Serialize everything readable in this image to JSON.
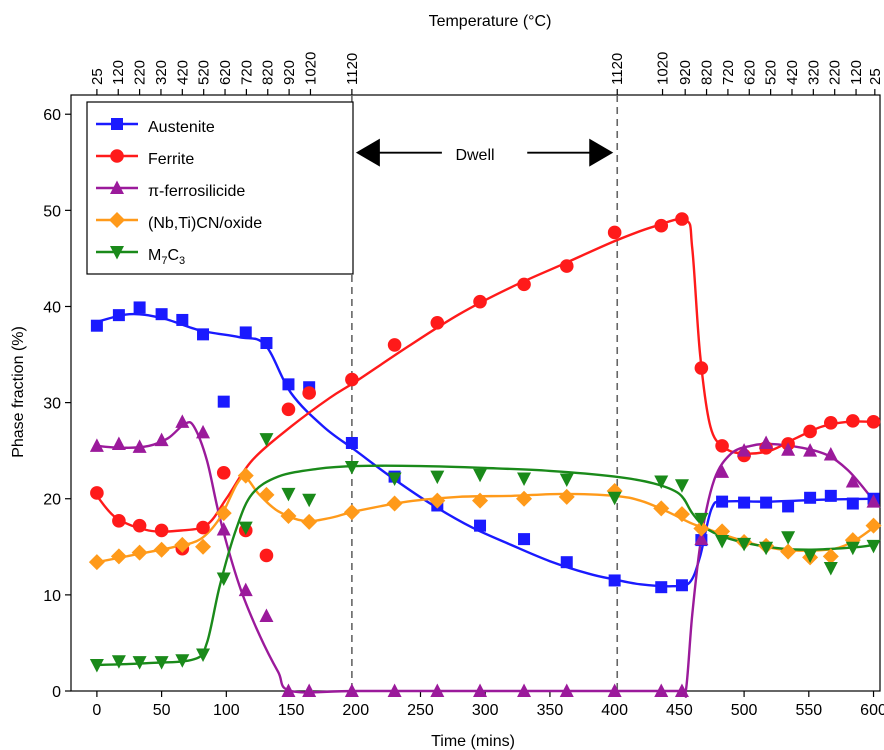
{
  "chart_data": {
    "type": "scatter",
    "xlabel": "Time (mins)",
    "ylabel": "Phase fraction (%)",
    "top_axis_label": "Temperature (°C)",
    "xlim": [
      -20,
      605
    ],
    "ylim": [
      0,
      62
    ],
    "x_ticks": [
      0,
      50,
      100,
      150,
      200,
      250,
      300,
      350,
      400,
      450,
      500,
      550,
      600
    ],
    "y_ticks": [
      0,
      10,
      20,
      30,
      40,
      50,
      60
    ],
    "top_ticks": [
      {
        "x": 0,
        "label": "25"
      },
      {
        "x": 16.5,
        "label": "120"
      },
      {
        "x": 33,
        "label": "220"
      },
      {
        "x": 49.5,
        "label": "320"
      },
      {
        "x": 66,
        "label": "420"
      },
      {
        "x": 82.5,
        "label": "520"
      },
      {
        "x": 99,
        "label": "620"
      },
      {
        "x": 115.5,
        "label": "720"
      },
      {
        "x": 132,
        "label": "820"
      },
      {
        "x": 148.5,
        "label": "920"
      },
      {
        "x": 165,
        "label": "1020"
      },
      {
        "x": 197,
        "label": "1120"
      },
      {
        "x": 402,
        "label": "1120"
      },
      {
        "x": 437,
        "label": "1020"
      },
      {
        "x": 454.5,
        "label": "920"
      },
      {
        "x": 471,
        "label": "820"
      },
      {
        "x": 487.5,
        "label": "720"
      },
      {
        "x": 504,
        "label": "620"
      },
      {
        "x": 520.5,
        "label": "520"
      },
      {
        "x": 537,
        "label": "420"
      },
      {
        "x": 553.5,
        "label": "320"
      },
      {
        "x": 570,
        "label": "220"
      },
      {
        "x": 586.5,
        "label": "120"
      },
      {
        "x": 601,
        "label": "25"
      }
    ],
    "vlines": [
      197,
      402
    ],
    "dwell": {
      "label": "Dwell",
      "from": 197,
      "to": 402,
      "y": 56
    },
    "grid": false,
    "legend_position": "top-left",
    "series": [
      {
        "name": "Austenite",
        "color": "#1a1aff",
        "marker": "square",
        "points": [
          [
            0,
            38
          ],
          [
            17,
            39.1
          ],
          [
            33,
            39.9
          ],
          [
            50,
            39.2
          ],
          [
            66,
            38.6
          ],
          [
            82,
            37.1
          ],
          [
            98,
            30.1
          ],
          [
            115,
            37.3
          ],
          [
            131,
            36.2
          ],
          [
            148,
            31.9
          ],
          [
            164,
            31.6
          ],
          [
            197,
            25.8
          ],
          [
            230,
            22.3
          ],
          [
            263,
            19.3
          ],
          [
            296,
            17.2
          ],
          [
            330,
            15.8
          ],
          [
            363,
            13.4
          ],
          [
            400,
            11.5
          ],
          [
            436,
            10.8
          ],
          [
            452,
            11
          ],
          [
            467,
            15.7
          ],
          [
            483,
            19.7
          ],
          [
            500,
            19.6
          ],
          [
            517,
            19.6
          ],
          [
            534,
            19.2
          ],
          [
            551,
            20.1
          ],
          [
            567,
            20.3
          ],
          [
            584,
            19.5
          ],
          [
            600,
            20
          ]
        ],
        "curve": [
          [
            0,
            38.4
          ],
          [
            25,
            39.2
          ],
          [
            50,
            38.8
          ],
          [
            80,
            37.5
          ],
          [
            110,
            36.8
          ],
          [
            130,
            36
          ],
          [
            150,
            31
          ],
          [
            175,
            27.5
          ],
          [
            200,
            25
          ],
          [
            230,
            22
          ],
          [
            260,
            19.3
          ],
          [
            290,
            17
          ],
          [
            320,
            15.2
          ],
          [
            350,
            13.5
          ],
          [
            380,
            12.2
          ],
          [
            400,
            11.6
          ],
          [
            420,
            11.1
          ],
          [
            445,
            10.9
          ],
          [
            458,
            11.3
          ],
          [
            466,
            14
          ],
          [
            475,
            19
          ],
          [
            485,
            19.7
          ],
          [
            520,
            19.7
          ],
          [
            560,
            19.9
          ],
          [
            600,
            20
          ]
        ]
      },
      {
        "name": "Ferrite",
        "color": "#ff1a1a",
        "marker": "circle",
        "points": [
          [
            0,
            20.6
          ],
          [
            17,
            17.7
          ],
          [
            33,
            17.2
          ],
          [
            50,
            16.7
          ],
          [
            66,
            14.8
          ],
          [
            82,
            17
          ],
          [
            98,
            22.7
          ],
          [
            115,
            16.7
          ],
          [
            131,
            14.1
          ],
          [
            148,
            29.3
          ],
          [
            164,
            31
          ],
          [
            197,
            32.4
          ],
          [
            230,
            36
          ],
          [
            263,
            38.3
          ],
          [
            296,
            40.5
          ],
          [
            330,
            42.3
          ],
          [
            363,
            44.2
          ],
          [
            400,
            47.7
          ],
          [
            436,
            48.4
          ],
          [
            452,
            49.1
          ],
          [
            467,
            33.6
          ],
          [
            483,
            25.5
          ],
          [
            500,
            24.5
          ],
          [
            517,
            25.3
          ],
          [
            534,
            25.7
          ],
          [
            551,
            27
          ],
          [
            567,
            27.9
          ],
          [
            584,
            28.1
          ],
          [
            600,
            28
          ]
        ],
        "curve": [
          [
            0,
            20.3
          ],
          [
            15,
            18
          ],
          [
            40,
            16.7
          ],
          [
            65,
            16.7
          ],
          [
            85,
            17.3
          ],
          [
            100,
            20
          ],
          [
            120,
            24
          ],
          [
            150,
            27.5
          ],
          [
            180,
            30.5
          ],
          [
            200,
            32.2
          ],
          [
            240,
            35.8
          ],
          [
            280,
            39.2
          ],
          [
            320,
            42
          ],
          [
            360,
            44.4
          ],
          [
            400,
            46.8
          ],
          [
            430,
            48.3
          ],
          [
            455,
            49
          ],
          [
            460,
            46
          ],
          [
            466,
            35
          ],
          [
            474,
            27.5
          ],
          [
            485,
            25.3
          ],
          [
            500,
            24.7
          ],
          [
            520,
            25
          ],
          [
            540,
            26.3
          ],
          [
            560,
            27.5
          ],
          [
            580,
            28
          ],
          [
            600,
            28
          ]
        ]
      },
      {
        "name": "π-ferrosilicide",
        "color": "#9b1a9b",
        "marker": "triangle-up",
        "points": [
          [
            0,
            25.5
          ],
          [
            17,
            25.7
          ],
          [
            33,
            25.4
          ],
          [
            50,
            26.1
          ],
          [
            66,
            28
          ],
          [
            82,
            26.9
          ],
          [
            98,
            16.8
          ],
          [
            115,
            10.5
          ],
          [
            131,
            7.8
          ],
          [
            148,
            0
          ],
          [
            164,
            0
          ],
          [
            197,
            0
          ],
          [
            230,
            0
          ],
          [
            263,
            0
          ],
          [
            296,
            0
          ],
          [
            330,
            0
          ],
          [
            363,
            0
          ],
          [
            400,
            0
          ],
          [
            436,
            0
          ],
          [
            452,
            0
          ],
          [
            467,
            15.8
          ],
          [
            483,
            22.8
          ],
          [
            500,
            25
          ],
          [
            517,
            25.8
          ],
          [
            534,
            25.1
          ],
          [
            551,
            25
          ],
          [
            567,
            24.6
          ],
          [
            584,
            21.8
          ],
          [
            600,
            19.7
          ]
        ],
        "curve": [
          [
            0,
            25.5
          ],
          [
            20,
            25.3
          ],
          [
            40,
            25.5
          ],
          [
            55,
            26.3
          ],
          [
            68,
            27.8
          ],
          [
            75,
            27.5
          ],
          [
            85,
            24
          ],
          [
            95,
            18
          ],
          [
            110,
            11
          ],
          [
            125,
            6
          ],
          [
            140,
            2
          ],
          [
            150,
            0
          ],
          [
            200,
            0
          ],
          [
            300,
            0
          ],
          [
            400,
            0
          ],
          [
            450,
            0
          ],
          [
            455,
            0
          ],
          [
            460,
            8
          ],
          [
            467,
            16
          ],
          [
            477,
            22
          ],
          [
            490,
            24.7
          ],
          [
            505,
            25.5
          ],
          [
            520,
            25.7
          ],
          [
            545,
            25.3
          ],
          [
            565,
            24.5
          ],
          [
            580,
            23
          ],
          [
            593,
            21
          ],
          [
            600,
            19.8
          ]
        ]
      },
      {
        "name": "(Nb,Ti)CN/oxide",
        "color": "#ff9a1a",
        "marker": "diamond",
        "points": [
          [
            0,
            13.4
          ],
          [
            17,
            14
          ],
          [
            33,
            14.4
          ],
          [
            50,
            14.7
          ],
          [
            66,
            15.2
          ],
          [
            82,
            15
          ],
          [
            98,
            18.5
          ],
          [
            115,
            22.4
          ],
          [
            131,
            20.4
          ],
          [
            148,
            18.2
          ],
          [
            164,
            17.6
          ],
          [
            197,
            18.6
          ],
          [
            230,
            19.5
          ],
          [
            263,
            19.8
          ],
          [
            296,
            19.8
          ],
          [
            330,
            20
          ],
          [
            363,
            20.2
          ],
          [
            400,
            20.8
          ],
          [
            436,
            19
          ],
          [
            452,
            18.4
          ],
          [
            467,
            16.9
          ],
          [
            483,
            16.6
          ],
          [
            500,
            15.5
          ],
          [
            517,
            15.1
          ],
          [
            534,
            14.5
          ],
          [
            551,
            13.9
          ],
          [
            567,
            14
          ],
          [
            584,
            15.7
          ],
          [
            600,
            17.2
          ]
        ],
        "curve": [
          [
            0,
            13.4
          ],
          [
            30,
            14.2
          ],
          [
            60,
            15
          ],
          [
            80,
            15.8
          ],
          [
            95,
            18
          ],
          [
            108,
            21.5
          ],
          [
            115,
            22.2
          ],
          [
            125,
            20.5
          ],
          [
            140,
            18.7
          ],
          [
            160,
            17.7
          ],
          [
            180,
            18
          ],
          [
            200,
            18.7
          ],
          [
            240,
            19.7
          ],
          [
            280,
            20.2
          ],
          [
            320,
            20.3
          ],
          [
            360,
            20.5
          ],
          [
            400,
            20.3
          ],
          [
            420,
            19.8
          ],
          [
            440,
            18.7
          ],
          [
            460,
            17.4
          ],
          [
            475,
            16.7
          ],
          [
            490,
            16
          ],
          [
            510,
            15.2
          ],
          [
            530,
            14.7
          ],
          [
            550,
            14.6
          ],
          [
            570,
            14.8
          ],
          [
            585,
            15.6
          ],
          [
            600,
            17
          ]
        ]
      },
      {
        "name": "M7C3",
        "color": "#1a8a1a",
        "marker": "triangle-down",
        "points": [
          [
            0,
            2.7
          ],
          [
            17,
            3.1
          ],
          [
            33,
            3
          ],
          [
            50,
            3
          ],
          [
            66,
            3.2
          ],
          [
            82,
            3.8
          ],
          [
            98,
            11.7
          ],
          [
            115,
            17
          ],
          [
            131,
            26.2
          ],
          [
            148,
            20.5
          ],
          [
            164,
            19.9
          ],
          [
            197,
            23.3
          ],
          [
            230,
            22.1
          ],
          [
            263,
            22.3
          ],
          [
            296,
            22.5
          ],
          [
            330,
            22.1
          ],
          [
            363,
            22
          ],
          [
            400,
            20.1
          ],
          [
            436,
            21.8
          ],
          [
            452,
            21.4
          ],
          [
            467,
            17.9
          ],
          [
            483,
            15.6
          ],
          [
            500,
            15.3
          ],
          [
            517,
            14.9
          ],
          [
            534,
            16
          ],
          [
            551,
            14.1
          ],
          [
            567,
            12.8
          ],
          [
            584,
            14.9
          ],
          [
            600,
            15.1
          ]
        ],
        "curve": [
          [
            0,
            2.7
          ],
          [
            40,
            2.9
          ],
          [
            75,
            3.3
          ],
          [
            85,
            5
          ],
          [
            95,
            11
          ],
          [
            108,
            17
          ],
          [
            120,
            20.5
          ],
          [
            140,
            22.3
          ],
          [
            170,
            23.1
          ],
          [
            200,
            23.4
          ],
          [
            250,
            23.4
          ],
          [
            300,
            23.2
          ],
          [
            350,
            22.9
          ],
          [
            400,
            22.3
          ],
          [
            430,
            21.6
          ],
          [
            450,
            20.5
          ],
          [
            460,
            18.5
          ],
          [
            470,
            17
          ],
          [
            485,
            16
          ],
          [
            505,
            15.3
          ],
          [
            530,
            14.8
          ],
          [
            550,
            14.7
          ],
          [
            570,
            14.8
          ],
          [
            590,
            15
          ],
          [
            600,
            15.2
          ]
        ]
      }
    ]
  },
  "legend": {
    "items": [
      {
        "label": "Austenite"
      },
      {
        "label": "Ferrite"
      },
      {
        "label": "π-ferrosilicide"
      },
      {
        "label": "(Nb,Ti)CN/oxide"
      },
      {
        "label_main": "M",
        "label_sub1": "7",
        "label_mid": "C",
        "label_sub2": "3"
      }
    ]
  }
}
